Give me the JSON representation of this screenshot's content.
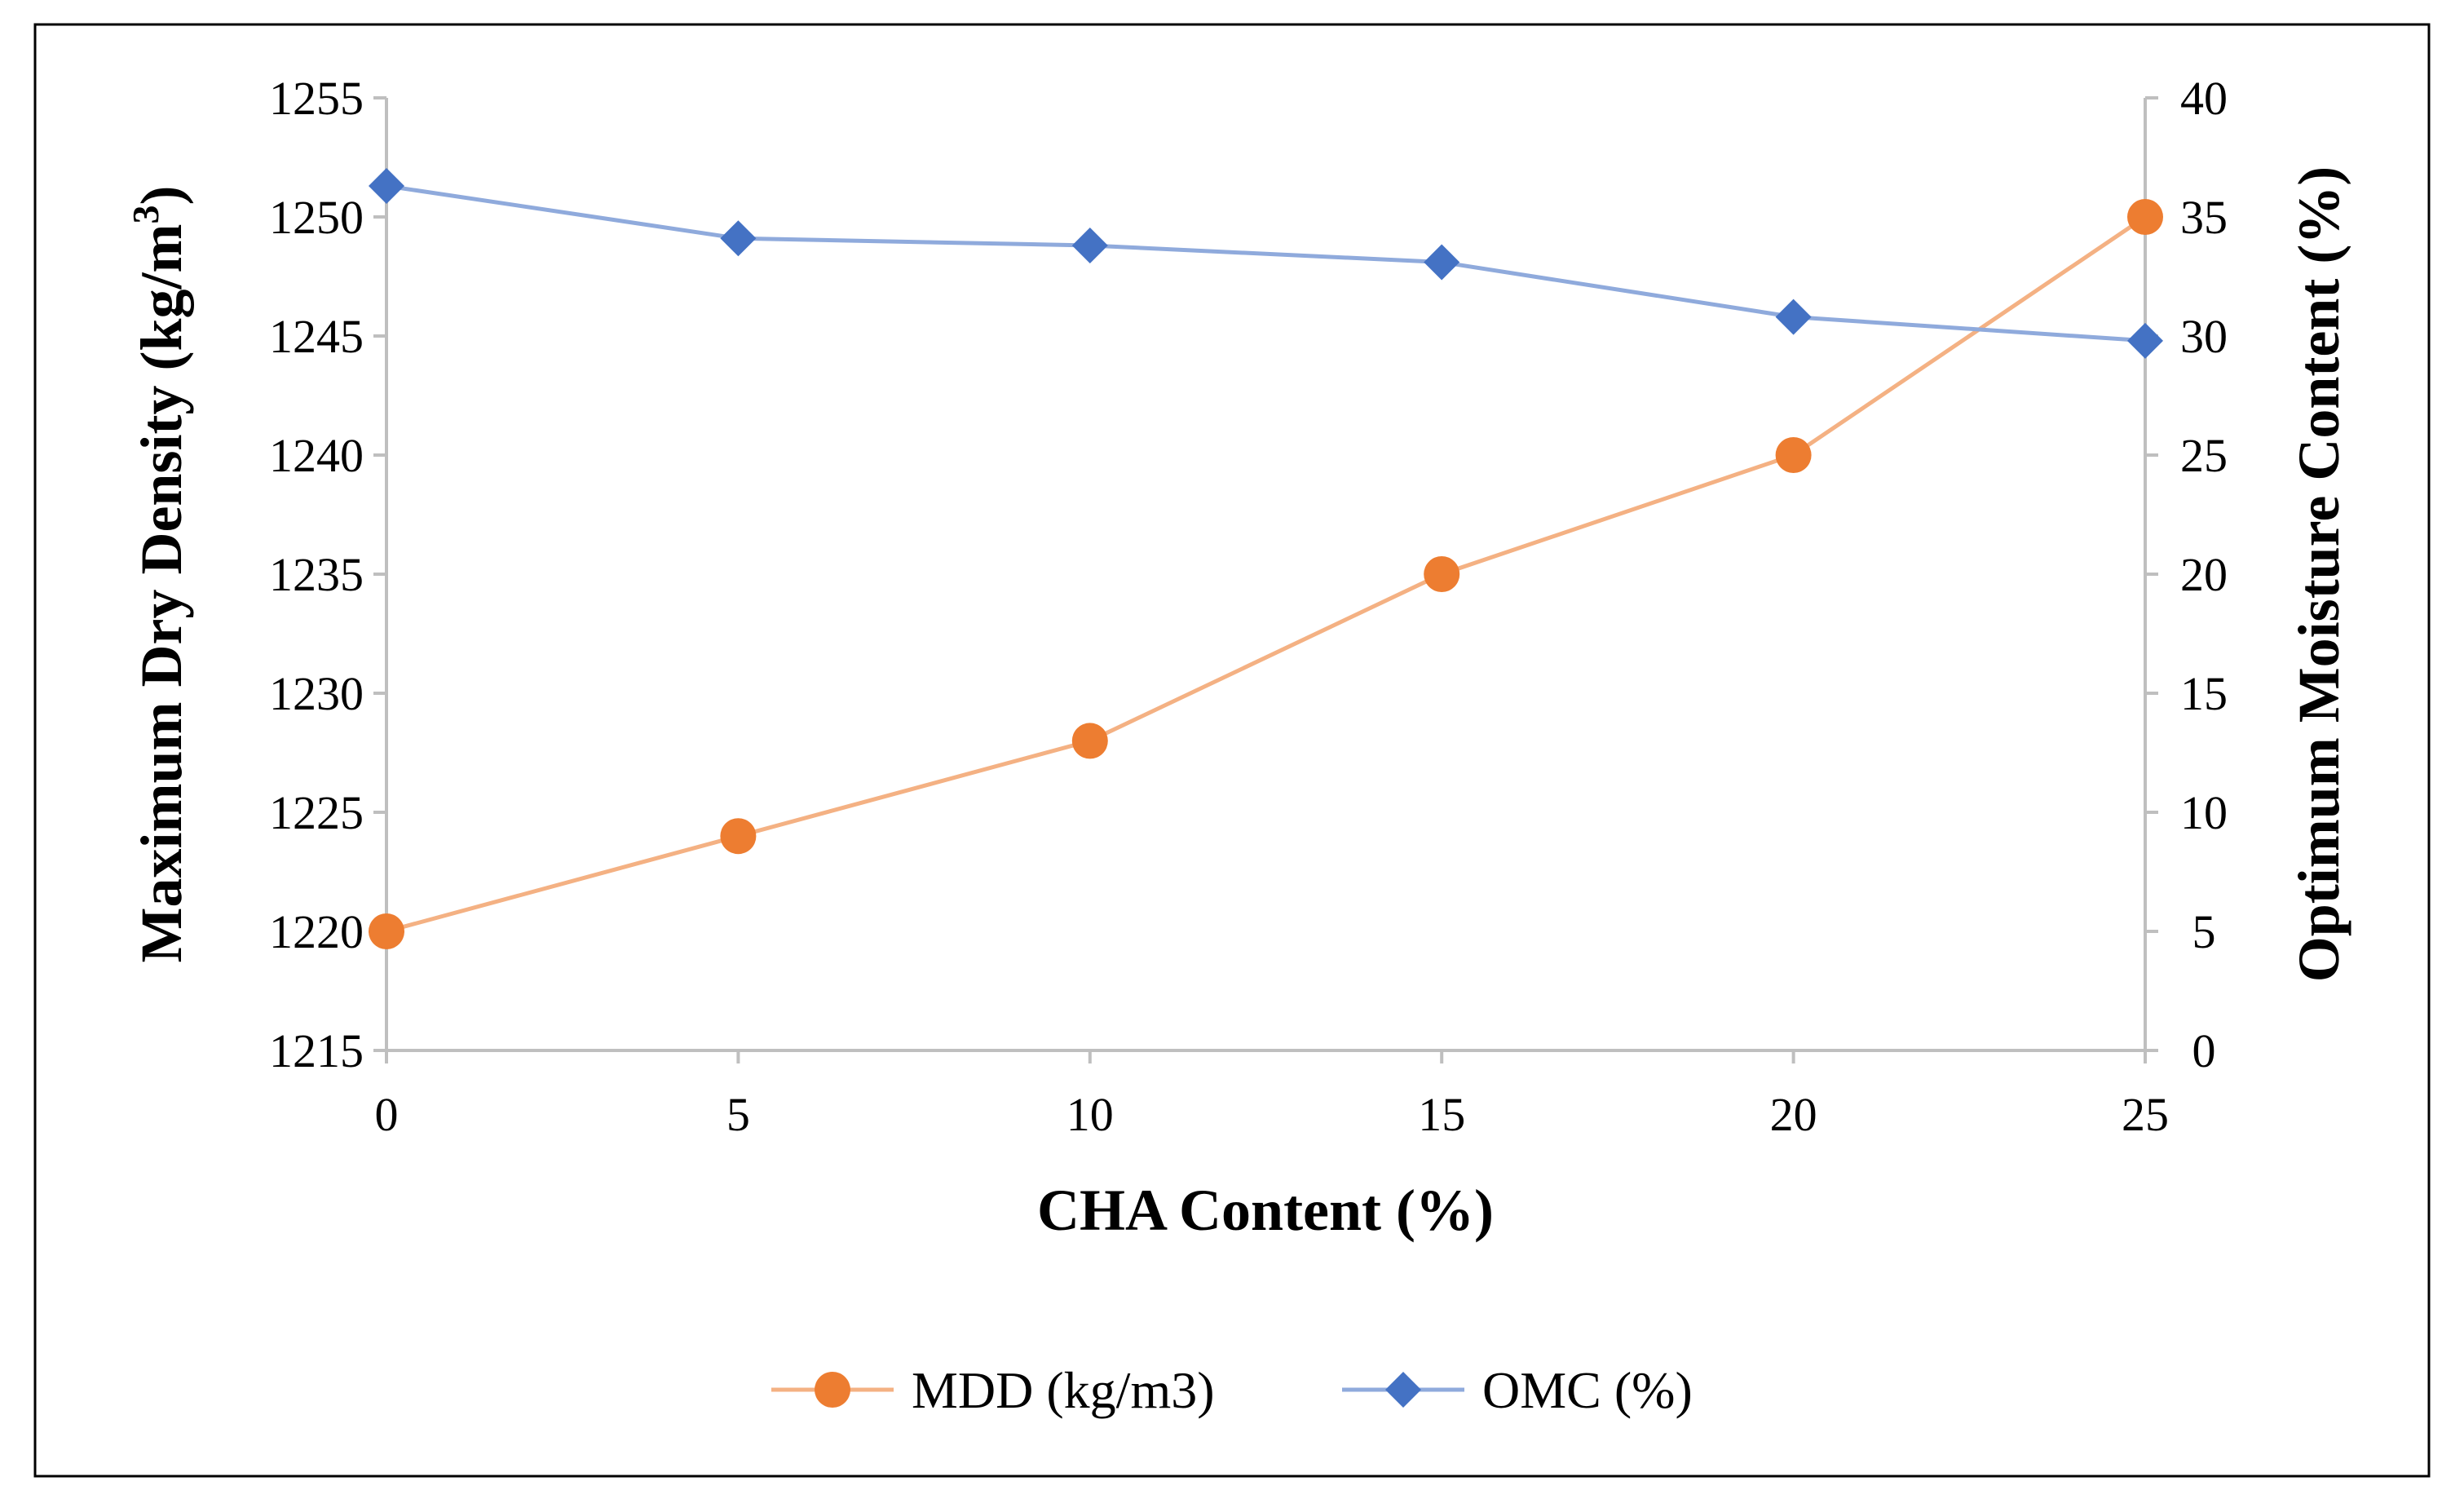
{
  "chart_data": {
    "type": "line",
    "title": "",
    "xlabel": "CHA Content (%)",
    "ylabel": "Maximum Dry Density (kg/m",
    "ylabel_superscript": "3",
    "ylabel_close": ")",
    "y2label": "Optimum Moisture Content (%)",
    "x": [
      0,
      5,
      10,
      15,
      20,
      25
    ],
    "xlim": [
      0,
      25
    ],
    "xticks": [
      0,
      5,
      10,
      15,
      20,
      25
    ],
    "ylim": [
      1215,
      1255
    ],
    "yticks": [
      1215,
      1220,
      1225,
      1230,
      1235,
      1240,
      1245,
      1250,
      1255
    ],
    "y2lim": [
      0,
      40
    ],
    "y2ticks": [
      0,
      5,
      10,
      15,
      20,
      25,
      30,
      35,
      40
    ],
    "grid": false,
    "legend_position": "bottom",
    "series": [
      {
        "name": "MDD (kg/m3)",
        "axis": "left",
        "marker": "circle",
        "line_color": "#F4B183",
        "marker_color": "#ED7D31",
        "values": [
          1220,
          1224,
          1228,
          1235,
          1240,
          1250
        ]
      },
      {
        "name": "OMC (%)",
        "axis": "right",
        "marker": "diamond",
        "line_color": "#8FAADC",
        "marker_color": "#4472C4",
        "values": [
          36.3,
          34.1,
          33.8,
          33.1,
          30.8,
          29.8
        ]
      }
    ]
  }
}
